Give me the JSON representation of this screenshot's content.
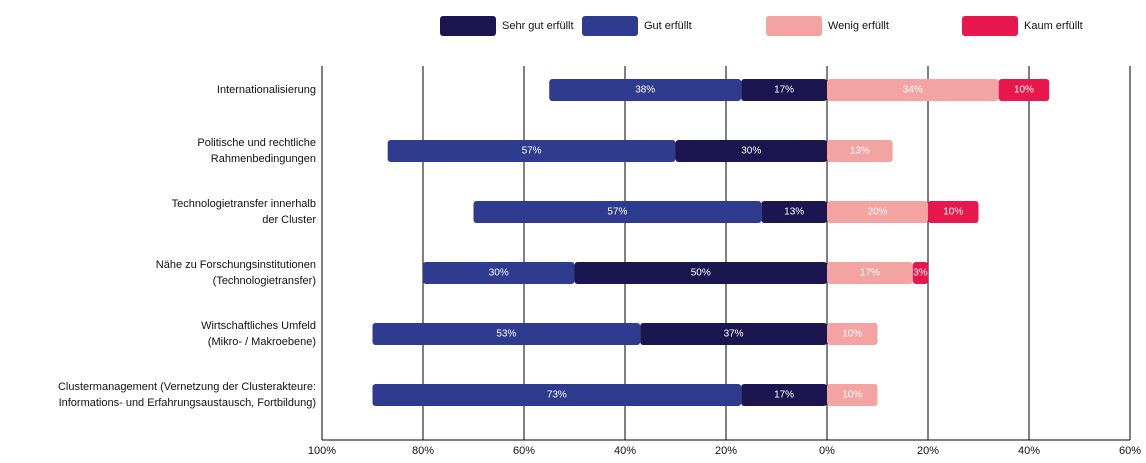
{
  "chart_data": {
    "type": "diverging_bar",
    "categories": [
      [
        "Internationalisierung"
      ],
      [
        "Politische und rechtliche",
        "Rahmenbedingungen"
      ],
      [
        "Technologietransfer innerhalb",
        "der Cluster"
      ],
      [
        "Nähe zu Forschungsinstitutionen",
        "(Technologietransfer)"
      ],
      [
        "Wirtschaftliches Umfeld",
        "(Mikro- / Makroebene)"
      ],
      [
        "Clustermanagement (Vernetzung der Clusterakteure:",
        "Informations- und Erfahrungsaustausch, Fortbildung)"
      ]
    ],
    "series": [
      {
        "name": "Sehr gut erfüllt",
        "color": "#1c1650",
        "values": [
          -17,
          -30,
          -13,
          -50,
          -37,
          -17
        ],
        "value_labels": [
          "17%",
          "30%",
          "13%",
          "50%",
          "37%",
          "17%"
        ]
      },
      {
        "name": "Gut erfüllt",
        "color": "#2f3b8e",
        "values": [
          -38,
          -57,
          -57,
          -30,
          -53,
          -73
        ],
        "value_labels": [
          "38%",
          "57%",
          "57%",
          "30%",
          "53%",
          "73%"
        ]
      },
      {
        "name": "Wenig erfüllt",
        "color": "#f4a3a3",
        "values": [
          34,
          13,
          20,
          17,
          10,
          10
        ],
        "value_labels": [
          "34%",
          "13%",
          "20%",
          "17%",
          "10%",
          "10%"
        ]
      },
      {
        "name": "Kaum erfüllt",
        "color": "#e8184f",
        "values": [
          10,
          null,
          10,
          3,
          null,
          null
        ],
        "value_labels": [
          "10%",
          null,
          "10%",
          "3%",
          null,
          null
        ]
      }
    ],
    "xlim": [
      -100,
      60
    ],
    "xticks": [
      {
        "value": -100,
        "label": "100%"
      },
      {
        "value": -80,
        "label": "80%"
      },
      {
        "value": -60,
        "label": "60%"
      },
      {
        "value": -40,
        "label": "40%"
      },
      {
        "value": -20,
        "label": "20%"
      },
      {
        "value": 0,
        "label": "0%"
      },
      {
        "value": 20,
        "label": "20%"
      },
      {
        "value": 40,
        "label": "40%"
      },
      {
        "value": 60,
        "label": "60%"
      }
    ],
    "grid": true
  }
}
